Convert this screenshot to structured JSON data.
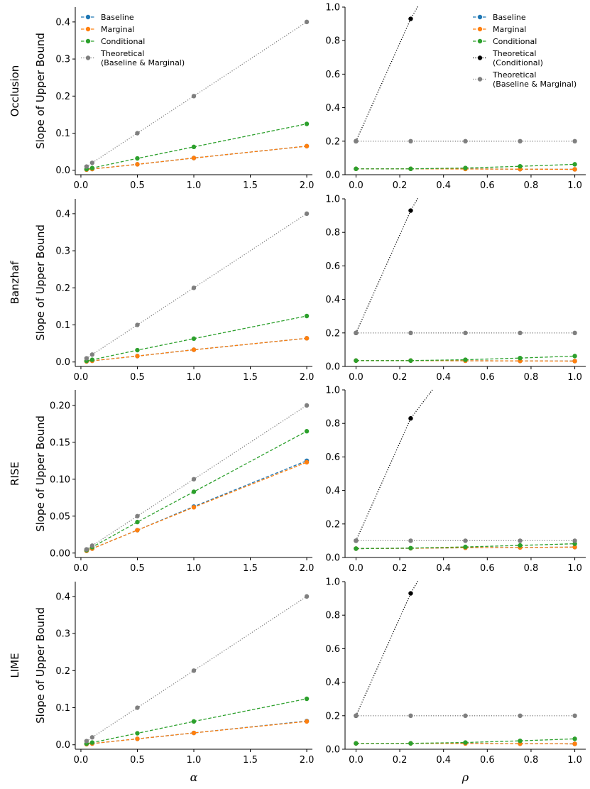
{
  "chart_data": [
    {
      "type": "line",
      "method": "Occlusion",
      "ylabel": "Slope of Upper Bound",
      "xlabel": "",
      "xlim": [
        -0.05,
        2.05
      ],
      "ylim": [
        -0.012,
        0.44
      ],
      "xticks": [
        0.0,
        0.5,
        1.0,
        1.5,
        2.0
      ],
      "xtick_labels": [
        "0.0",
        "0.5",
        "1.0",
        "1.5",
        "2.0"
      ],
      "yticks": [
        0.0,
        0.1,
        0.2,
        0.3,
        0.4
      ],
      "ytick_labels": [
        "0.0",
        "0.1",
        "0.2",
        "0.3",
        "0.4"
      ],
      "legend": "top-left",
      "series": [
        {
          "name": "Baseline",
          "color": "#1f77b4",
          "style": "dashed",
          "x": [
            0.05,
            0.1,
            0.5,
            1.0,
            2.0
          ],
          "y": [
            0.0016,
            0.0033,
            0.016,
            0.033,
            0.065
          ]
        },
        {
          "name": "Marginal",
          "color": "#ff7f0e",
          "style": "dashed",
          "x": [
            0.05,
            0.1,
            0.5,
            1.0,
            2.0
          ],
          "y": [
            0.0016,
            0.0033,
            0.016,
            0.033,
            0.065
          ]
        },
        {
          "name": "Conditional",
          "color": "#2ca02c",
          "style": "dashed",
          "x": [
            0.05,
            0.1,
            0.5,
            1.0,
            2.0
          ],
          "y": [
            0.003,
            0.006,
            0.032,
            0.063,
            0.125
          ]
        },
        {
          "name": "Theoretical\n(Baseline & Marginal)",
          "color": "#7f7f7f",
          "style": "dotted",
          "x": [
            0.05,
            0.1,
            0.5,
            1.0,
            2.0
          ],
          "y": [
            0.01,
            0.02,
            0.1,
            0.2,
            0.4
          ]
        }
      ]
    },
    {
      "type": "line",
      "method": "Occlusion",
      "ylabel": "",
      "xlabel": "",
      "xlim": [
        -0.05,
        1.05
      ],
      "ylim": [
        0,
        1.0
      ],
      "xticks": [
        0.0,
        0.2,
        0.4,
        0.6,
        0.8,
        1.0
      ],
      "xtick_labels": [
        "0.0",
        "0.2",
        "0.4",
        "0.6",
        "0.8",
        "1.0"
      ],
      "yticks": [
        0.0,
        0.2,
        0.4,
        0.6,
        0.8,
        1.0
      ],
      "ytick_labels": [
        "0.0",
        "0.2",
        "0.4",
        "0.6",
        "0.8",
        "1.0"
      ],
      "legend": "top-right",
      "series": [
        {
          "name": "Baseline",
          "color": "#1f77b4",
          "style": "dashed",
          "x": [
            0,
            0.25,
            0.5,
            0.75,
            1.0
          ],
          "y": [
            0.035,
            0.035,
            0.035,
            0.033,
            0.032
          ]
        },
        {
          "name": "Marginal",
          "color": "#ff7f0e",
          "style": "dashed",
          "x": [
            0,
            0.25,
            0.5,
            0.75,
            1.0
          ],
          "y": [
            0.035,
            0.035,
            0.034,
            0.033,
            0.032
          ]
        },
        {
          "name": "Conditional",
          "color": "#2ca02c",
          "style": "dashed",
          "x": [
            0,
            0.25,
            0.5,
            0.75,
            1.0
          ],
          "y": [
            0.035,
            0.035,
            0.04,
            0.05,
            0.062
          ]
        },
        {
          "name": "Theoretical\n(Conditional)",
          "color": "#000000",
          "style": "dotted",
          "x": [
            0,
            0.25,
            0.29
          ],
          "y": [
            0.2,
            0.93,
            1.02
          ]
        },
        {
          "name": "Theoretical\n(Baseline & Marginal)",
          "color": "#7f7f7f",
          "style": "dotted",
          "x": [
            0,
            0.25,
            0.5,
            0.75,
            1.0
          ],
          "y": [
            0.2,
            0.2,
            0.2,
            0.2,
            0.2
          ]
        }
      ]
    },
    {
      "type": "line",
      "method": "Banzhaf",
      "ylabel": "Slope of Upper Bound",
      "xlabel": "",
      "xlim": [
        -0.05,
        2.05
      ],
      "ylim": [
        -0.012,
        0.44
      ],
      "xticks": [
        0.0,
        0.5,
        1.0,
        1.5,
        2.0
      ],
      "xtick_labels": [
        "0.0",
        "0.5",
        "1.0",
        "1.5",
        "2.0"
      ],
      "yticks": [
        0.0,
        0.1,
        0.2,
        0.3,
        0.4
      ],
      "ytick_labels": [
        "0.0",
        "0.1",
        "0.2",
        "0.3",
        "0.4"
      ],
      "legend": "",
      "series": [
        {
          "name": "Baseline",
          "color": "#1f77b4",
          "style": "dashed",
          "x": [
            0.05,
            0.1,
            0.5,
            1.0,
            2.0
          ],
          "y": [
            0.0016,
            0.0033,
            0.016,
            0.033,
            0.064
          ]
        },
        {
          "name": "Marginal",
          "color": "#ff7f0e",
          "style": "dashed",
          "x": [
            0.05,
            0.1,
            0.5,
            1.0,
            2.0
          ],
          "y": [
            0.0016,
            0.0033,
            0.016,
            0.033,
            0.064
          ]
        },
        {
          "name": "Conditional",
          "color": "#2ca02c",
          "style": "dashed",
          "x": [
            0.05,
            0.1,
            0.5,
            1.0,
            2.0
          ],
          "y": [
            0.003,
            0.006,
            0.032,
            0.063,
            0.124
          ]
        },
        {
          "name": "Theoretical\n(Baseline & Marginal)",
          "color": "#7f7f7f",
          "style": "dotted",
          "x": [
            0.05,
            0.1,
            0.5,
            1.0,
            2.0
          ],
          "y": [
            0.01,
            0.02,
            0.1,
            0.2,
            0.4
          ]
        }
      ]
    },
    {
      "type": "line",
      "method": "Banzhaf",
      "ylabel": "",
      "xlabel": "",
      "xlim": [
        -0.05,
        1.05
      ],
      "ylim": [
        0,
        1.0
      ],
      "xticks": [
        0.0,
        0.2,
        0.4,
        0.6,
        0.8,
        1.0
      ],
      "xtick_labels": [
        "0.0",
        "0.2",
        "0.4",
        "0.6",
        "0.8",
        "1.0"
      ],
      "yticks": [
        0.0,
        0.2,
        0.4,
        0.6,
        0.8,
        1.0
      ],
      "ytick_labels": [
        "0.0",
        "0.2",
        "0.4",
        "0.6",
        "0.8",
        "1.0"
      ],
      "legend": "",
      "series": [
        {
          "name": "Baseline",
          "color": "#1f77b4",
          "style": "dashed",
          "x": [
            0,
            0.25,
            0.5,
            0.75,
            1.0
          ],
          "y": [
            0.035,
            0.035,
            0.034,
            0.033,
            0.032
          ]
        },
        {
          "name": "Marginal",
          "color": "#ff7f0e",
          "style": "dashed",
          "x": [
            0,
            0.25,
            0.5,
            0.75,
            1.0
          ],
          "y": [
            0.035,
            0.035,
            0.034,
            0.033,
            0.032
          ]
        },
        {
          "name": "Conditional",
          "color": "#2ca02c",
          "style": "dashed",
          "x": [
            0,
            0.25,
            0.5,
            0.75,
            1.0
          ],
          "y": [
            0.035,
            0.035,
            0.04,
            0.05,
            0.062
          ]
        },
        {
          "name": "Theoretical\n(Conditional)",
          "color": "#000000",
          "style": "dotted",
          "x": [
            0,
            0.25,
            0.29
          ],
          "y": [
            0.2,
            0.93,
            1.02
          ]
        },
        {
          "name": "Theoretical\n(Baseline & Marginal)",
          "color": "#7f7f7f",
          "style": "dotted",
          "x": [
            0,
            0.25,
            0.5,
            0.75,
            1.0
          ],
          "y": [
            0.2,
            0.2,
            0.2,
            0.2,
            0.2
          ]
        }
      ]
    },
    {
      "type": "line",
      "method": "RISE",
      "ylabel": "Slope of Upper Bound",
      "xlabel": "",
      "xlim": [
        -0.05,
        2.05
      ],
      "ylim": [
        -0.006,
        0.221
      ],
      "xticks": [
        0.0,
        0.5,
        1.0,
        1.5,
        2.0
      ],
      "xtick_labels": [
        "0.0",
        "0.5",
        "1.0",
        "1.5",
        "2.0"
      ],
      "yticks": [
        0.0,
        0.05,
        0.1,
        0.15,
        0.2
      ],
      "ytick_labels": [
        "0.00",
        "0.05",
        "0.10",
        "0.15",
        "0.20"
      ],
      "legend": "",
      "series": [
        {
          "name": "Baseline",
          "color": "#1f77b4",
          "style": "dashed",
          "x": [
            0.05,
            0.1,
            0.5,
            1.0,
            2.0
          ],
          "y": [
            0.003,
            0.006,
            0.031,
            0.063,
            0.125
          ]
        },
        {
          "name": "Marginal",
          "color": "#ff7f0e",
          "style": "dashed",
          "x": [
            0.05,
            0.1,
            0.5,
            1.0,
            2.0
          ],
          "y": [
            0.003,
            0.006,
            0.031,
            0.062,
            0.123
          ]
        },
        {
          "name": "Conditional",
          "color": "#2ca02c",
          "style": "dashed",
          "x": [
            0.05,
            0.1,
            0.5,
            1.0,
            2.0
          ],
          "y": [
            0.004,
            0.008,
            0.042,
            0.083,
            0.165
          ]
        },
        {
          "name": "Theoretical\n(Baseline & Marginal)",
          "color": "#7f7f7f",
          "style": "dotted",
          "x": [
            0.05,
            0.1,
            0.5,
            1.0,
            2.0
          ],
          "y": [
            0.005,
            0.01,
            0.05,
            0.1,
            0.2
          ]
        }
      ]
    },
    {
      "type": "line",
      "method": "RISE",
      "ylabel": "",
      "xlabel": "",
      "xlim": [
        -0.05,
        1.05
      ],
      "ylim": [
        0,
        1.0
      ],
      "xticks": [
        0.0,
        0.2,
        0.4,
        0.6,
        0.8,
        1.0
      ],
      "xtick_labels": [
        "0.0",
        "0.2",
        "0.4",
        "0.6",
        "0.8",
        "1.0"
      ],
      "yticks": [
        0.0,
        0.2,
        0.4,
        0.6,
        0.8,
        1.0
      ],
      "ytick_labels": [
        "0.0",
        "0.2",
        "0.4",
        "0.6",
        "0.8",
        "1.0"
      ],
      "legend": "",
      "series": [
        {
          "name": "Baseline",
          "color": "#1f77b4",
          "style": "dashed",
          "x": [
            0,
            0.25,
            0.5,
            0.75,
            1.0
          ],
          "y": [
            0.053,
            0.055,
            0.058,
            0.06,
            0.062
          ]
        },
        {
          "name": "Marginal",
          "color": "#ff7f0e",
          "style": "dashed",
          "x": [
            0,
            0.25,
            0.5,
            0.75,
            1.0
          ],
          "y": [
            0.053,
            0.055,
            0.058,
            0.06,
            0.062
          ]
        },
        {
          "name": "Conditional",
          "color": "#2ca02c",
          "style": "dashed",
          "x": [
            0,
            0.25,
            0.5,
            0.75,
            1.0
          ],
          "y": [
            0.053,
            0.056,
            0.063,
            0.072,
            0.082
          ]
        },
        {
          "name": "Theoretical\n(Conditional)",
          "color": "#000000",
          "style": "dotted",
          "x": [
            0,
            0.25,
            0.355
          ],
          "y": [
            0.1,
            0.83,
            1.01
          ]
        },
        {
          "name": "Theoretical\n(Baseline & Marginal)",
          "color": "#7f7f7f",
          "style": "dotted",
          "x": [
            0,
            0.25,
            0.5,
            0.75,
            1.0
          ],
          "y": [
            0.1,
            0.1,
            0.1,
            0.1,
            0.1
          ]
        }
      ]
    },
    {
      "type": "line",
      "method": "LIME",
      "ylabel": "Slope of Upper Bound",
      "xlabel": "α",
      "xlim": [
        -0.05,
        2.05
      ],
      "ylim": [
        -0.012,
        0.44
      ],
      "xticks": [
        0.0,
        0.5,
        1.0,
        1.5,
        2.0
      ],
      "xtick_labels": [
        "0.0",
        "0.5",
        "1.0",
        "1.5",
        "2.0"
      ],
      "yticks": [
        0.0,
        0.1,
        0.2,
        0.3,
        0.4
      ],
      "ytick_labels": [
        "0.0",
        "0.1",
        "0.2",
        "0.3",
        "0.4"
      ],
      "legend": "",
      "series": [
        {
          "name": "Baseline",
          "color": "#1f77b4",
          "style": "dashed",
          "x": [
            0.05,
            0.1,
            0.5,
            1.0,
            2.0
          ],
          "y": [
            0.0016,
            0.0033,
            0.016,
            0.032,
            0.064
          ]
        },
        {
          "name": "Marginal",
          "color": "#ff7f0e",
          "style": "dashed",
          "x": [
            0.05,
            0.1,
            0.5,
            1.0,
            2.0
          ],
          "y": [
            0.0016,
            0.0033,
            0.016,
            0.032,
            0.063
          ]
        },
        {
          "name": "Conditional",
          "color": "#2ca02c",
          "style": "dashed",
          "x": [
            0.05,
            0.1,
            0.5,
            1.0,
            2.0
          ],
          "y": [
            0.003,
            0.006,
            0.031,
            0.063,
            0.124
          ]
        },
        {
          "name": "Theoretical\n(Baseline & Marginal)",
          "color": "#7f7f7f",
          "style": "dotted",
          "x": [
            0.05,
            0.1,
            0.5,
            1.0,
            2.0
          ],
          "y": [
            0.01,
            0.02,
            0.1,
            0.2,
            0.4
          ]
        }
      ]
    },
    {
      "type": "line",
      "method": "LIME",
      "ylabel": "",
      "xlabel": "ρ",
      "xlim": [
        -0.05,
        1.05
      ],
      "ylim": [
        0,
        1.0
      ],
      "xticks": [
        0.0,
        0.2,
        0.4,
        0.6,
        0.8,
        1.0
      ],
      "xtick_labels": [
        "0.0",
        "0.2",
        "0.4",
        "0.6",
        "0.8",
        "1.0"
      ],
      "yticks": [
        0.0,
        0.2,
        0.4,
        0.6,
        0.8,
        1.0
      ],
      "ytick_labels": [
        "0.0",
        "0.2",
        "0.4",
        "0.6",
        "0.8",
        "1.0"
      ],
      "legend": "",
      "series": [
        {
          "name": "Baseline",
          "color": "#1f77b4",
          "style": "dashed",
          "x": [
            0,
            0.25,
            0.5,
            0.75,
            1.0
          ],
          "y": [
            0.035,
            0.035,
            0.035,
            0.033,
            0.032
          ]
        },
        {
          "name": "Marginal",
          "color": "#ff7f0e",
          "style": "dashed",
          "x": [
            0,
            0.25,
            0.5,
            0.75,
            1.0
          ],
          "y": [
            0.035,
            0.035,
            0.034,
            0.033,
            0.032
          ]
        },
        {
          "name": "Conditional",
          "color": "#2ca02c",
          "style": "dashed",
          "x": [
            0,
            0.25,
            0.5,
            0.75,
            1.0
          ],
          "y": [
            0.035,
            0.035,
            0.04,
            0.05,
            0.062
          ]
        },
        {
          "name": "Theoretical\n(Conditional)",
          "color": "#000000",
          "style": "dotted",
          "x": [
            0,
            0.25,
            0.29
          ],
          "y": [
            0.2,
            0.93,
            1.02
          ]
        },
        {
          "name": "Theoretical\n(Baseline & Marginal)",
          "color": "#7f7f7f",
          "style": "dotted",
          "x": [
            0,
            0.25,
            0.5,
            0.75,
            1.0
          ],
          "y": [
            0.2,
            0.2,
            0.2,
            0.2,
            0.2
          ]
        }
      ]
    }
  ]
}
